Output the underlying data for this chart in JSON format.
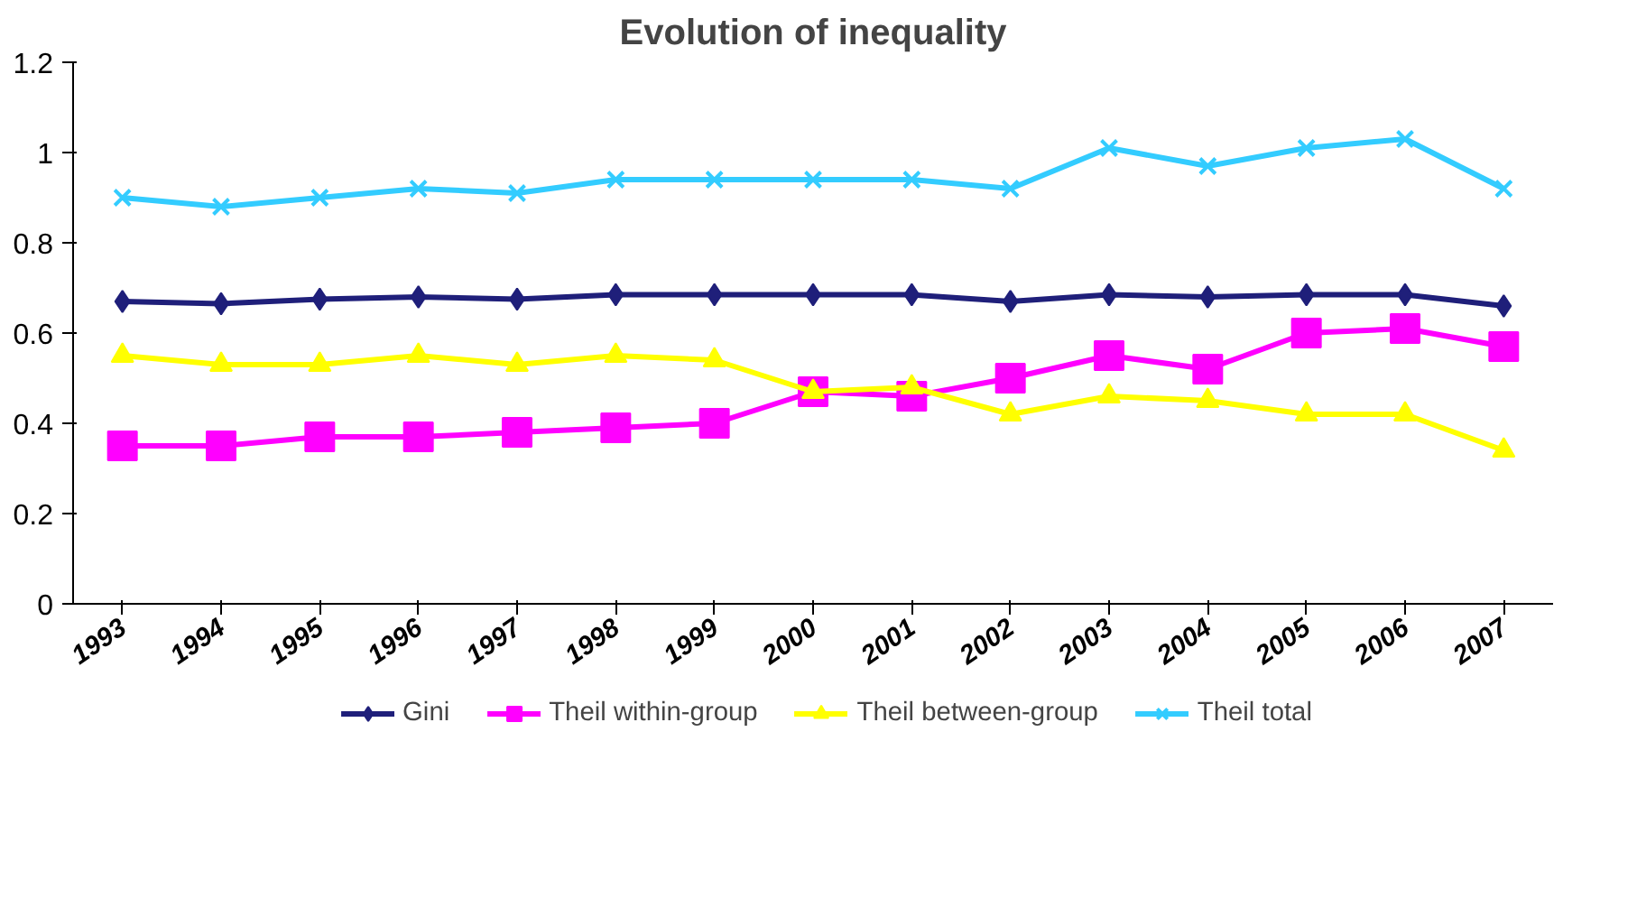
{
  "chart_data": {
    "type": "line",
    "title": "Evolution of inequality",
    "categories": [
      "1993",
      "1994",
      "1995",
      "1996",
      "1997",
      "1998",
      "1999",
      "2000",
      "2001",
      "2002",
      "2003",
      "2004",
      "2005",
      "2006",
      "2007"
    ],
    "series": [
      {
        "name": "Gini",
        "color": "#1f1f7a",
        "marker": "diamond",
        "values": [
          0.67,
          0.665,
          0.675,
          0.68,
          0.675,
          0.685,
          0.685,
          0.685,
          0.685,
          0.67,
          0.685,
          0.68,
          0.685,
          0.685,
          0.66
        ]
      },
      {
        "name": "Theil within-group",
        "color": "#ff00ff",
        "marker": "square",
        "values": [
          0.35,
          0.35,
          0.37,
          0.37,
          0.38,
          0.39,
          0.4,
          0.47,
          0.46,
          0.5,
          0.55,
          0.52,
          0.6,
          0.61,
          0.57
        ]
      },
      {
        "name": "Theil between-group",
        "color": "#ffff00",
        "marker": "triangle",
        "values": [
          0.55,
          0.53,
          0.53,
          0.55,
          0.53,
          0.55,
          0.54,
          0.47,
          0.48,
          0.42,
          0.46,
          0.45,
          0.42,
          0.42,
          0.34
        ]
      },
      {
        "name": "Theil total",
        "color": "#33ccff",
        "marker": "cross",
        "values": [
          0.9,
          0.88,
          0.9,
          0.92,
          0.91,
          0.94,
          0.94,
          0.94,
          0.94,
          0.92,
          1.01,
          0.97,
          1.01,
          1.03,
          0.92
        ]
      }
    ],
    "ylim": [
      0,
      1.2
    ],
    "yticks": [
      0,
      0.2,
      0.4,
      0.6,
      0.8,
      1,
      1.2
    ],
    "grid": false,
    "legend": "bottom",
    "line_style": "solid"
  }
}
